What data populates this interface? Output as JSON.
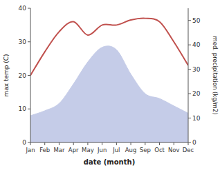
{
  "chart_data": {
    "type": "line",
    "categories": [
      "Jan",
      "Feb",
      "Mar",
      "Apr",
      "May",
      "Jun",
      "Jul",
      "Aug",
      "Sep",
      "Oct",
      "Nov",
      "Dec"
    ],
    "xlabel": "date (month)",
    "ylabel": "max temp (C)",
    "y2label": "med. precipitation (kg/m2)",
    "ylim": [
      0,
      40
    ],
    "yticks": [
      0,
      10,
      20,
      30,
      40
    ],
    "y2lim": [
      0,
      55
    ],
    "y2ticks": [
      0,
      10,
      20,
      30,
      40,
      50
    ],
    "grid": false,
    "series": [
      {
        "type": "area",
        "color": "#c5cce8",
        "axis": "y2",
        "values": [
          11,
          13,
          16,
          24,
          33,
          39,
          38,
          28,
          20,
          18,
          15,
          12
        ]
      },
      {
        "type": "line",
        "color": "#c0504d",
        "values": [
          20,
          27,
          33,
          36,
          32,
          35,
          35,
          36.5,
          37,
          36,
          30,
          23
        ]
      }
    ]
  }
}
